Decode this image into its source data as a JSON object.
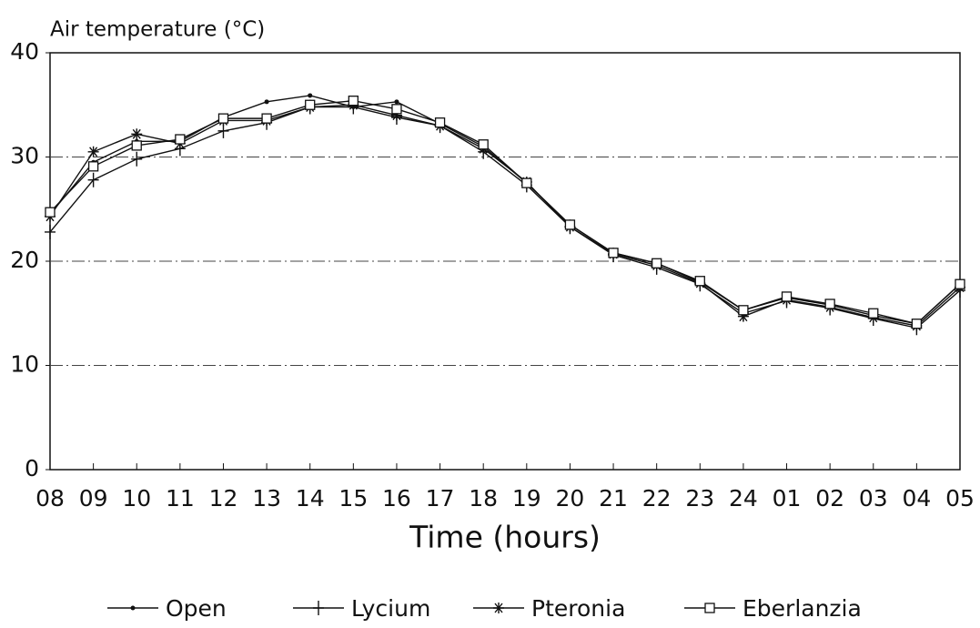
{
  "chart_data": {
    "type": "line",
    "y_label": "Air temperature (°C)",
    "x_label": "Time (hours)",
    "categories": [
      "08",
      "09",
      "10",
      "11",
      "12",
      "13",
      "14",
      "15",
      "16",
      "17",
      "18",
      "19",
      "20",
      "21",
      "22",
      "23",
      "24",
      "01",
      "02",
      "03",
      "04",
      "05"
    ],
    "ylim": [
      0,
      40
    ],
    "yticks": [
      0,
      10,
      20,
      30,
      40
    ],
    "grid": true,
    "legend": "bottom",
    "series": [
      {
        "name": "Open",
        "color": "#111111",
        "marker": "dot",
        "values": [
          24.5,
          29.5,
          31.5,
          31.5,
          33.8,
          35.3,
          35.9,
          34.8,
          35.3,
          33.2,
          31.0,
          27.5,
          23.5,
          20.8,
          19.8,
          18.0,
          15.3,
          16.5,
          15.8,
          14.8,
          14.0,
          17.8
        ]
      },
      {
        "name": "Lycium",
        "color": "#111111",
        "marker": "plus",
        "values": [
          22.8,
          27.8,
          29.8,
          30.8,
          32.5,
          33.3,
          34.8,
          34.8,
          33.8,
          33.0,
          30.5,
          27.3,
          23.3,
          20.6,
          19.4,
          17.8,
          15.0,
          16.2,
          15.5,
          14.5,
          13.6,
          17.2
        ]
      },
      {
        "name": "Pteronia",
        "color": "#111111",
        "marker": "asterisk",
        "values": [
          24.3,
          30.5,
          32.2,
          31.3,
          33.5,
          33.5,
          34.8,
          35.0,
          34.0,
          33.0,
          30.8,
          27.6,
          23.3,
          20.7,
          19.6,
          17.9,
          14.7,
          16.3,
          15.6,
          14.6,
          13.8,
          17.5
        ]
      },
      {
        "name": "Eberlanzia",
        "color": "#111111",
        "marker": "square",
        "values": [
          24.7,
          29.1,
          31.1,
          31.7,
          33.7,
          33.7,
          35.0,
          35.4,
          34.6,
          33.3,
          31.2,
          27.5,
          23.5,
          20.8,
          19.8,
          18.1,
          15.3,
          16.6,
          15.9,
          15.0,
          14.0,
          17.8
        ]
      }
    ]
  }
}
